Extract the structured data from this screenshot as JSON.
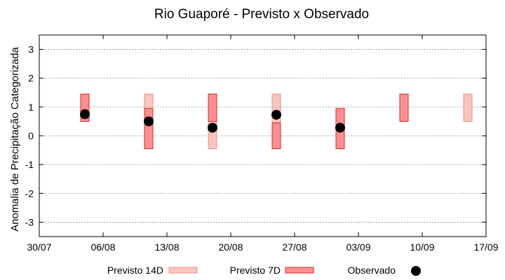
{
  "chart_data": {
    "type": "range-bar",
    "title": "Rio Guaporé - Previsto x Observado",
    "xlabel": "",
    "ylabel": "Anomalia de Precipitação Categorizada",
    "ylim": [
      -3.5,
      3.5
    ],
    "yticks": [
      "-3",
      "-2",
      "-1",
      "0",
      "1",
      "2",
      "3"
    ],
    "xlim": [
      "2024-07-30",
      "2024-09-17"
    ],
    "xticks": [
      "30/07",
      "06/08",
      "13/08",
      "20/08",
      "27/08",
      "03/09",
      "10/09",
      "17/09"
    ],
    "grid": true,
    "legend_position": "bottom",
    "colors": {
      "previsto_14d_fill": "#f9c5bf",
      "previsto_14d_edge": "#f08f86",
      "previsto_7d_fill": "#fc8f8f",
      "previsto_7d_edge": "#d42a2a",
      "observado": "#000000",
      "grid": "#888888"
    },
    "series": [
      {
        "name": "Previsto 14D",
        "kind": "range",
        "points": [
          {
            "x": "2024-08-11",
            "low": -0.45,
            "high": 1.45
          },
          {
            "x": "2024-08-18",
            "low": -0.45,
            "high": 1.45
          },
          {
            "x": "2024-08-25",
            "low": 0.45,
            "high": 1.45
          },
          {
            "x": "2024-09-15",
            "low": 0.5,
            "high": 1.45
          }
        ]
      },
      {
        "name": "Previsto 7D",
        "kind": "range",
        "points": [
          {
            "x": "2024-08-04",
            "low": 0.5,
            "high": 1.45
          },
          {
            "x": "2024-08-11",
            "low": -0.45,
            "high": 0.95
          },
          {
            "x": "2024-08-18",
            "low": 0.5,
            "high": 1.45
          },
          {
            "x": "2024-08-25",
            "low": -0.45,
            "high": 0.45
          },
          {
            "x": "2024-09-01",
            "low": -0.45,
            "high": 0.95
          },
          {
            "x": "2024-09-08",
            "low": 0.5,
            "high": 1.45
          }
        ]
      },
      {
        "name": "Observado",
        "kind": "point",
        "points": [
          {
            "x": "2024-08-04",
            "y": 0.75
          },
          {
            "x": "2024-08-11",
            "y": 0.5
          },
          {
            "x": "2024-08-18",
            "y": 0.28
          },
          {
            "x": "2024-08-25",
            "y": 0.73
          },
          {
            "x": "2024-09-01",
            "y": 0.28
          }
        ]
      }
    ]
  }
}
